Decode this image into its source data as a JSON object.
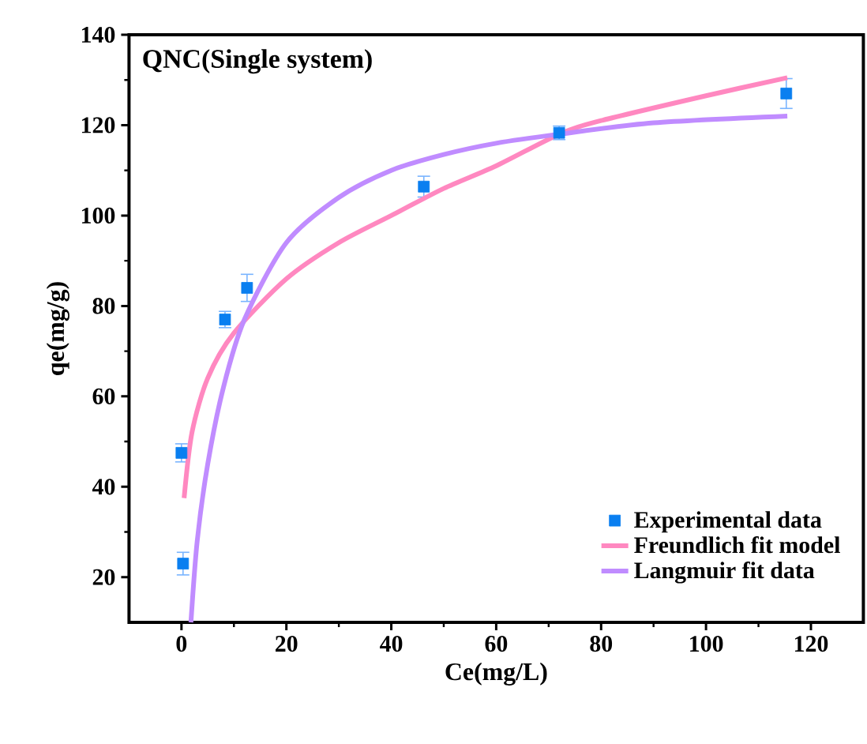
{
  "chart_data": {
    "type": "scatter",
    "title": "QNC(Single system)",
    "xlabel": "Ce(mg/L)",
    "ylabel": "qe(mg/g)",
    "xlim": [
      -10,
      130
    ],
    "xticks": [
      0,
      20,
      40,
      60,
      80,
      100,
      120
    ],
    "ylim": [
      10,
      140
    ],
    "yticks": [
      20,
      40,
      60,
      80,
      100,
      120,
      140
    ],
    "legend": "bottom right",
    "grid": false,
    "series": [
      {
        "name": "Experimental data",
        "marker": "square",
        "color": "#0a7ff0",
        "x": [
          0.3,
          0,
          8.3,
          12.5,
          46.2,
          72,
          115.3
        ],
        "values": [
          23,
          47.5,
          77,
          84,
          106.4,
          118.3,
          127
        ],
        "errors": [
          2.5,
          2,
          1.8,
          3,
          2.3,
          1.5,
          3.3
        ]
      },
      {
        "name": "Freundlich fit model",
        "type": "line",
        "color": "#ff88c0",
        "x": [
          0.5,
          2,
          5,
          10,
          20,
          30,
          40,
          50,
          60,
          72,
          80,
          100,
          115.5
        ],
        "values": [
          37.5,
          52,
          64,
          74,
          86,
          94,
          100,
          106,
          111,
          118,
          121,
          126.5,
          130.5
        ]
      },
      {
        "name": "Langmuir fit data",
        "type": "line",
        "color": "#c08cff",
        "x": [
          1.8,
          3,
          5,
          8,
          12,
          20,
          30,
          40,
          50,
          60,
          72,
          90,
          115.5
        ],
        "values": [
          10,
          28,
          45,
          62,
          77,
          94,
          104,
          110,
          113.5,
          116,
          118,
          120.5,
          122
        ]
      }
    ]
  }
}
